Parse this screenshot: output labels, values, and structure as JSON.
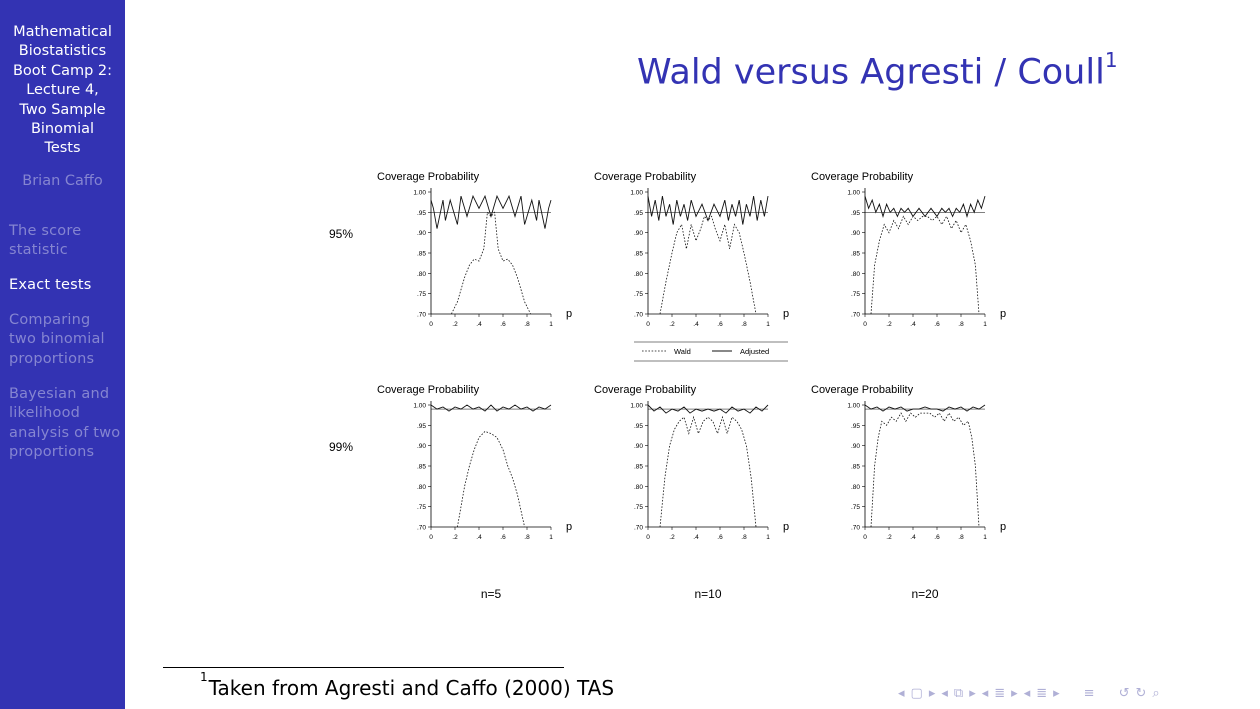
{
  "sidebar": {
    "title": "Mathematical Biostatistics Boot Camp 2: Lecture 4, Two Sample Binomial Tests",
    "title_lines": [
      "Mathematical",
      "Biostatistics",
      "Boot Camp 2:",
      "Lecture 4,",
      "Two Sample",
      "Binomial",
      "Tests"
    ],
    "author": "Brian Caffo",
    "sections": [
      {
        "label": "The score statistic",
        "lines": [
          "The score",
          "statistic"
        ],
        "active": false
      },
      {
        "label": "Exact tests",
        "lines": [
          "Exact tests"
        ],
        "active": true
      },
      {
        "label": "Comparing two binomial proportions",
        "lines": [
          "Comparing",
          "two binomial",
          "proportions"
        ],
        "active": false
      },
      {
        "label": "Bayesian and likelihood analysis of two proportions",
        "lines": [
          "Bayesian and",
          "likelihood",
          "analysis of two",
          "proportions"
        ],
        "active": false
      }
    ],
    "colors": {
      "background": "#3333b3",
      "active": "#ffffff",
      "inactive": "#8585d1"
    }
  },
  "frame": {
    "title": "Wald versus Agresti / Coull",
    "footnote_mark": "1",
    "title_color": "#3333b3"
  },
  "footnote": {
    "mark": "1",
    "text": "Taken from Agresti and Caffo (2000) TAS"
  },
  "navigation": {
    "icons": [
      "nav-left-arrow",
      "nav-frame",
      "nav-right-arrow",
      "nav-left-arrow",
      "nav-subsection",
      "nav-right-arrow",
      "nav-left-arrow",
      "nav-section",
      "nav-right-arrow",
      "nav-left-arrow",
      "nav-document",
      "nav-right-arrow",
      "nav-appendix",
      "nav-back",
      "nav-forward",
      "nav-search"
    ]
  },
  "chart_data": {
    "type": "line",
    "title": "",
    "row_labels": [
      "95%",
      "99%"
    ],
    "column_labels": [
      "n=5",
      "n=10",
      "n=20"
    ],
    "legend": {
      "entries": [
        "Wald",
        "Adjusted"
      ],
      "placement": "below top-middle panel"
    },
    "panels": [
      {
        "row": "95%",
        "n": 5,
        "nominal": 0.95,
        "ylabel": "Coverage Probability",
        "xlabel": "p",
        "xlim": [
          0,
          1
        ],
        "ylim": [
          0.7,
          1.0
        ],
        "xticks": [
          "0",
          ".2",
          ".4",
          ".6",
          ".8",
          "1"
        ],
        "yticks": [
          "1.00",
          ".95",
          ".90",
          ".85",
          ".80",
          ".75",
          ".70"
        ],
        "series": [
          {
            "name": "Wald",
            "x": [
              0.17,
              0.22,
              0.28,
              0.32,
              0.36,
              0.4,
              0.44,
              0.47,
              0.5,
              0.53,
              0.56,
              0.6,
              0.64,
              0.68,
              0.72,
              0.78,
              0.83
            ],
            "values": [
              0.7,
              0.73,
              0.79,
              0.82,
              0.835,
              0.83,
              0.86,
              0.95,
              0.94,
              0.95,
              0.86,
              0.83,
              0.835,
              0.82,
              0.79,
              0.73,
              0.7
            ]
          },
          {
            "name": "Adjusted",
            "x": [
              0.0,
              0.02,
              0.05,
              0.1,
              0.12,
              0.16,
              0.22,
              0.25,
              0.3,
              0.35,
              0.4,
              0.45,
              0.5,
              0.55,
              0.6,
              0.65,
              0.7,
              0.75,
              0.78,
              0.84,
              0.88,
              0.9,
              0.95,
              0.98,
              1.0
            ],
            "values": [
              0.98,
              0.96,
              0.91,
              0.98,
              0.93,
              0.98,
              0.92,
              0.99,
              0.94,
              0.99,
              0.96,
              0.99,
              0.94,
              0.99,
              0.96,
              0.99,
              0.94,
              0.99,
              0.92,
              0.98,
              0.93,
              0.98,
              0.91,
              0.96,
              0.98
            ]
          }
        ]
      },
      {
        "row": "95%",
        "n": 10,
        "nominal": 0.95,
        "ylabel": "Coverage Probability",
        "xlabel": "p",
        "xlim": [
          0,
          1
        ],
        "ylim": [
          0.7,
          1.0
        ],
        "xticks": [
          "0",
          ".2",
          ".4",
          ".6",
          ".8",
          "1"
        ],
        "yticks": [
          "1.00",
          ".95",
          ".90",
          ".85",
          ".80",
          ".75",
          ".70"
        ],
        "series": [
          {
            "name": "Wald",
            "x": [
              0.1,
              0.15,
              0.2,
              0.24,
              0.28,
              0.32,
              0.36,
              0.4,
              0.44,
              0.47,
              0.5,
              0.53,
              0.56,
              0.6,
              0.64,
              0.68,
              0.72,
              0.76,
              0.8,
              0.85,
              0.9
            ],
            "values": [
              0.7,
              0.78,
              0.85,
              0.9,
              0.92,
              0.86,
              0.92,
              0.88,
              0.91,
              0.94,
              0.93,
              0.94,
              0.91,
              0.88,
              0.92,
              0.86,
              0.92,
              0.9,
              0.85,
              0.78,
              0.7
            ]
          },
          {
            "name": "Adjusted",
            "x": [
              0.0,
              0.03,
              0.06,
              0.09,
              0.12,
              0.15,
              0.18,
              0.21,
              0.24,
              0.27,
              0.3,
              0.33,
              0.36,
              0.4,
              0.45,
              0.5,
              0.55,
              0.6,
              0.64,
              0.67,
              0.7,
              0.73,
              0.76,
              0.79,
              0.82,
              0.85,
              0.88,
              0.91,
              0.94,
              0.97,
              1.0
            ],
            "values": [
              0.99,
              0.94,
              0.98,
              0.93,
              0.99,
              0.94,
              0.97,
              0.92,
              0.98,
              0.94,
              0.97,
              0.93,
              0.98,
              0.94,
              0.97,
              0.93,
              0.97,
              0.94,
              0.98,
              0.93,
              0.97,
              0.94,
              0.98,
              0.92,
              0.97,
              0.94,
              0.99,
              0.93,
              0.98,
              0.94,
              0.99
            ]
          }
        ]
      },
      {
        "row": "95%",
        "n": 20,
        "nominal": 0.95,
        "ylabel": "Coverage Probability",
        "xlabel": "p",
        "xlim": [
          0,
          1
        ],
        "ylim": [
          0.7,
          1.0
        ],
        "xticks": [
          "0",
          ".2",
          ".4",
          ".6",
          ".8",
          "1"
        ],
        "yticks": [
          "1.00",
          ".95",
          ".90",
          ".85",
          ".80",
          ".75",
          ".70"
        ],
        "series": [
          {
            "name": "Wald",
            "x": [
              0.05,
              0.08,
              0.12,
              0.16,
              0.2,
              0.24,
              0.28,
              0.32,
              0.36,
              0.4,
              0.44,
              0.48,
              0.52,
              0.56,
              0.6,
              0.64,
              0.68,
              0.72,
              0.76,
              0.8,
              0.84,
              0.88,
              0.92,
              0.95
            ],
            "values": [
              0.7,
              0.82,
              0.88,
              0.92,
              0.9,
              0.93,
              0.91,
              0.94,
              0.92,
              0.94,
              0.93,
              0.94,
              0.94,
              0.93,
              0.94,
              0.92,
              0.94,
              0.91,
              0.93,
              0.9,
              0.92,
              0.88,
              0.82,
              0.7
            ]
          },
          {
            "name": "Adjusted",
            "x": [
              0.0,
              0.03,
              0.06,
              0.09,
              0.12,
              0.15,
              0.18,
              0.21,
              0.24,
              0.27,
              0.3,
              0.33,
              0.36,
              0.4,
              0.45,
              0.5,
              0.55,
              0.6,
              0.64,
              0.67,
              0.7,
              0.73,
              0.76,
              0.79,
              0.82,
              0.85,
              0.88,
              0.91,
              0.94,
              0.97,
              1.0
            ],
            "values": [
              0.99,
              0.96,
              0.98,
              0.95,
              0.97,
              0.94,
              0.97,
              0.95,
              0.96,
              0.94,
              0.96,
              0.95,
              0.96,
              0.94,
              0.96,
              0.94,
              0.96,
              0.94,
              0.96,
              0.95,
              0.96,
              0.94,
              0.96,
              0.95,
              0.97,
              0.94,
              0.97,
              0.95,
              0.98,
              0.96,
              0.99
            ]
          }
        ]
      },
      {
        "row": "99%",
        "n": 5,
        "nominal": 0.99,
        "ylabel": "Coverage Probability",
        "xlabel": "p",
        "xlim": [
          0,
          1
        ],
        "ylim": [
          0.7,
          1.0
        ],
        "xticks": [
          "0",
          ".2",
          ".4",
          ".6",
          ".8",
          "1"
        ],
        "yticks": [
          "1.00",
          ".95",
          ".90",
          ".85",
          ".80",
          ".75",
          ".70"
        ],
        "series": [
          {
            "name": "Wald",
            "x": [
              0.22,
              0.28,
              0.32,
              0.36,
              0.4,
              0.45,
              0.5,
              0.55,
              0.6,
              0.64,
              0.68,
              0.72,
              0.78
            ],
            "values": [
              0.7,
              0.8,
              0.85,
              0.89,
              0.92,
              0.935,
              0.93,
              0.92,
              0.89,
              0.85,
              0.82,
              0.78,
              0.7
            ]
          },
          {
            "name": "Adjusted",
            "x": [
              0.0,
              0.05,
              0.1,
              0.15,
              0.2,
              0.25,
              0.3,
              0.35,
              0.4,
              0.45,
              0.5,
              0.55,
              0.6,
              0.65,
              0.7,
              0.75,
              0.8,
              0.85,
              0.9,
              0.95,
              1.0
            ],
            "values": [
              1.0,
              0.99,
              0.995,
              0.985,
              0.995,
              0.99,
              1.0,
              0.99,
              0.995,
              0.985,
              1.0,
              0.985,
              0.995,
              0.99,
              1.0,
              0.99,
              0.995,
              0.985,
              0.995,
              0.99,
              1.0
            ]
          }
        ]
      },
      {
        "row": "99%",
        "n": 10,
        "nominal": 0.99,
        "ylabel": "Coverage Probability",
        "xlabel": "p",
        "xlim": [
          0,
          1
        ],
        "ylim": [
          0.7,
          1.0
        ],
        "xticks": [
          "0",
          ".2",
          ".4",
          ".6",
          ".8",
          "1"
        ],
        "yticks": [
          "1.00",
          ".95",
          ".90",
          ".85",
          ".80",
          ".75",
          ".70"
        ],
        "series": [
          {
            "name": "Wald",
            "x": [
              0.1,
              0.14,
              0.18,
              0.22,
              0.26,
              0.3,
              0.34,
              0.38,
              0.42,
              0.46,
              0.5,
              0.54,
              0.58,
              0.62,
              0.66,
              0.7,
              0.74,
              0.78,
              0.82,
              0.86,
              0.9
            ],
            "values": [
              0.7,
              0.82,
              0.9,
              0.94,
              0.96,
              0.97,
              0.93,
              0.97,
              0.93,
              0.96,
              0.97,
              0.96,
              0.93,
              0.97,
              0.93,
              0.97,
              0.96,
              0.94,
              0.9,
              0.82,
              0.7
            ]
          },
          {
            "name": "Adjusted",
            "x": [
              0.0,
              0.05,
              0.1,
              0.15,
              0.2,
              0.25,
              0.3,
              0.35,
              0.4,
              0.45,
              0.5,
              0.55,
              0.6,
              0.65,
              0.7,
              0.75,
              0.8,
              0.85,
              0.9,
              0.95,
              1.0
            ],
            "values": [
              1.0,
              0.985,
              0.995,
              0.98,
              0.99,
              0.985,
              0.995,
              0.98,
              0.99,
              0.985,
              0.99,
              0.985,
              0.99,
              0.98,
              0.995,
              0.985,
              0.99,
              0.98,
              0.995,
              0.985,
              1.0
            ]
          }
        ]
      },
      {
        "row": "99%",
        "n": 20,
        "nominal": 0.99,
        "ylabel": "Coverage Probability",
        "xlabel": "p",
        "xlim": [
          0,
          1
        ],
        "ylim": [
          0.7,
          1.0
        ],
        "xticks": [
          "0",
          ".2",
          ".4",
          ".6",
          ".8",
          "1"
        ],
        "yticks": [
          "1.00",
          ".95",
          ".90",
          ".85",
          ".80",
          ".75",
          ".70"
        ],
        "series": [
          {
            "name": "Wald",
            "x": [
              0.05,
              0.08,
              0.11,
              0.14,
              0.18,
              0.22,
              0.26,
              0.3,
              0.34,
              0.38,
              0.42,
              0.46,
              0.5,
              0.54,
              0.58,
              0.62,
              0.66,
              0.7,
              0.74,
              0.78,
              0.82,
              0.86,
              0.89,
              0.92,
              0.95
            ],
            "values": [
              0.7,
              0.85,
              0.92,
              0.96,
              0.95,
              0.97,
              0.96,
              0.98,
              0.96,
              0.98,
              0.97,
              0.98,
              0.98,
              0.98,
              0.97,
              0.98,
              0.96,
              0.98,
              0.96,
              0.97,
              0.95,
              0.96,
              0.92,
              0.85,
              0.7
            ]
          },
          {
            "name": "Adjusted",
            "x": [
              0.0,
              0.05,
              0.1,
              0.15,
              0.2,
              0.25,
              0.3,
              0.35,
              0.4,
              0.45,
              0.5,
              0.55,
              0.6,
              0.65,
              0.7,
              0.75,
              0.8,
              0.85,
              0.9,
              0.95,
              1.0
            ],
            "values": [
              1.0,
              0.99,
              0.995,
              0.985,
              0.995,
              0.99,
              0.995,
              0.985,
              0.99,
              0.99,
              0.995,
              0.99,
              0.99,
              0.985,
              0.995,
              0.99,
              0.995,
              0.985,
              0.995,
              0.99,
              1.0
            ]
          }
        ]
      }
    ]
  }
}
